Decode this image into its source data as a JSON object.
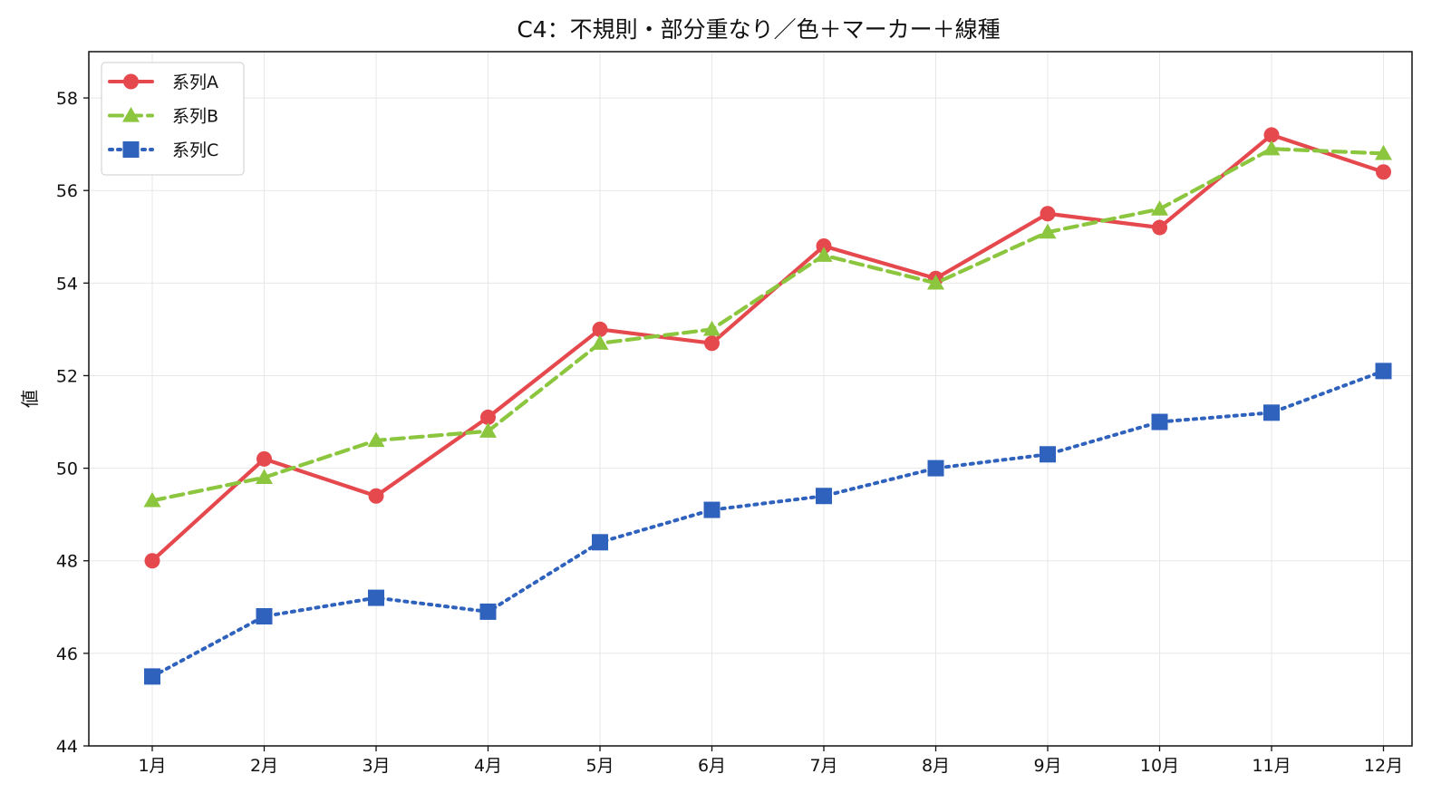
{
  "chart_data": {
    "type": "line",
    "title": "C4：不規則・部分重なり／色＋マーカー＋線種",
    "xlabel": "",
    "ylabel": "値",
    "categories": [
      "1月",
      "2月",
      "3月",
      "4月",
      "5月",
      "6月",
      "7月",
      "8月",
      "9月",
      "10月",
      "11月",
      "12月"
    ],
    "ylim": [
      44,
      59
    ],
    "yticks": [
      44,
      46,
      48,
      50,
      52,
      54,
      56,
      58
    ],
    "grid": true,
    "legend_position": "top-left",
    "series": [
      {
        "name": "系列A",
        "values": [
          48.0,
          50.2,
          49.4,
          51.1,
          53.0,
          52.7,
          54.8,
          54.1,
          55.5,
          55.2,
          57.2,
          56.4
        ],
        "color": "#e5484d",
        "marker": "circle",
        "line_style": "solid"
      },
      {
        "name": "系列B",
        "values": [
          49.3,
          49.8,
          50.6,
          50.8,
          52.7,
          53.0,
          54.6,
          54.0,
          55.1,
          55.6,
          56.9,
          56.8
        ],
        "color": "#8cc63f",
        "marker": "triangle",
        "line_style": "dashed"
      },
      {
        "name": "系列C",
        "values": [
          45.5,
          46.8,
          47.2,
          46.9,
          48.4,
          49.1,
          49.4,
          50.0,
          50.3,
          51.0,
          51.2,
          52.1
        ],
        "color": "#2f62bd",
        "marker": "square",
        "line_style": "dotted"
      }
    ]
  }
}
